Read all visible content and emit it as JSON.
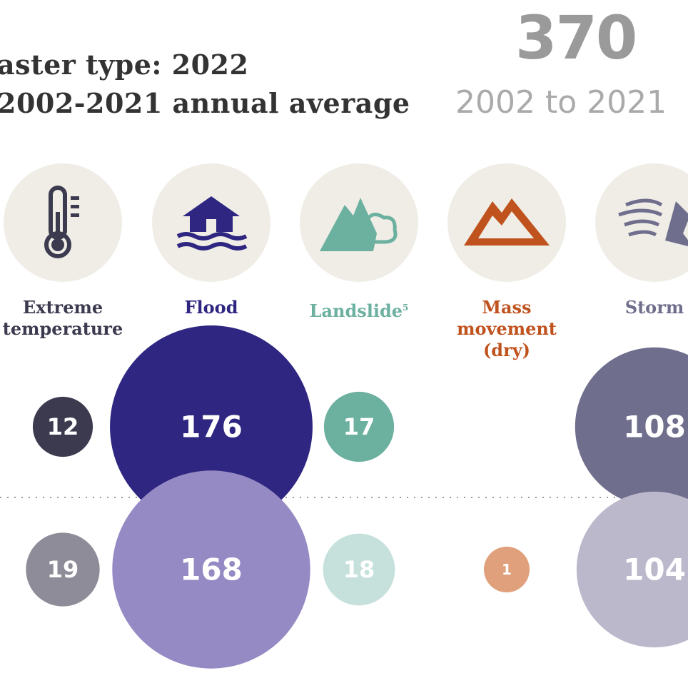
{
  "title": {
    "line1": "aster type: 2022",
    "line2": "2002-2021 annual average"
  },
  "total": {
    "value": "370",
    "period": "2002 to 2021"
  },
  "chart_data": {
    "type": "bubble",
    "categories": [
      "Extreme temperature",
      "Flood",
      "Landslide",
      "Mass movement (dry)",
      "Storm"
    ],
    "footnote_marks": [
      "",
      "",
      "5",
      "",
      ""
    ],
    "series": [
      {
        "name": "2022",
        "values": [
          12,
          176,
          17,
          0,
          108
        ]
      },
      {
        "name": "2002-2021 annual average",
        "values": [
          19,
          168,
          18,
          1,
          104
        ]
      }
    ],
    "colors": {
      "2022": [
        "#3b3a4f",
        "#2e2680",
        "#6cb0a0",
        "#c0521e",
        "#6f6e8d"
      ],
      "2002-2021 annual average": [
        "#8e8c98",
        "#958ac4",
        "#c6e1db",
        "#e0a07c",
        "#bcb8cc"
      ],
      "labels": [
        "#3b3a4f",
        "#2e2680",
        "#6cb0a0",
        "#c0521e",
        "#6f6e8d"
      ]
    },
    "icons": [
      "thermometer-icon",
      "flooded-house-icon",
      "landslide-icon",
      "mountain-icon",
      "storm-wind-icon"
    ]
  }
}
